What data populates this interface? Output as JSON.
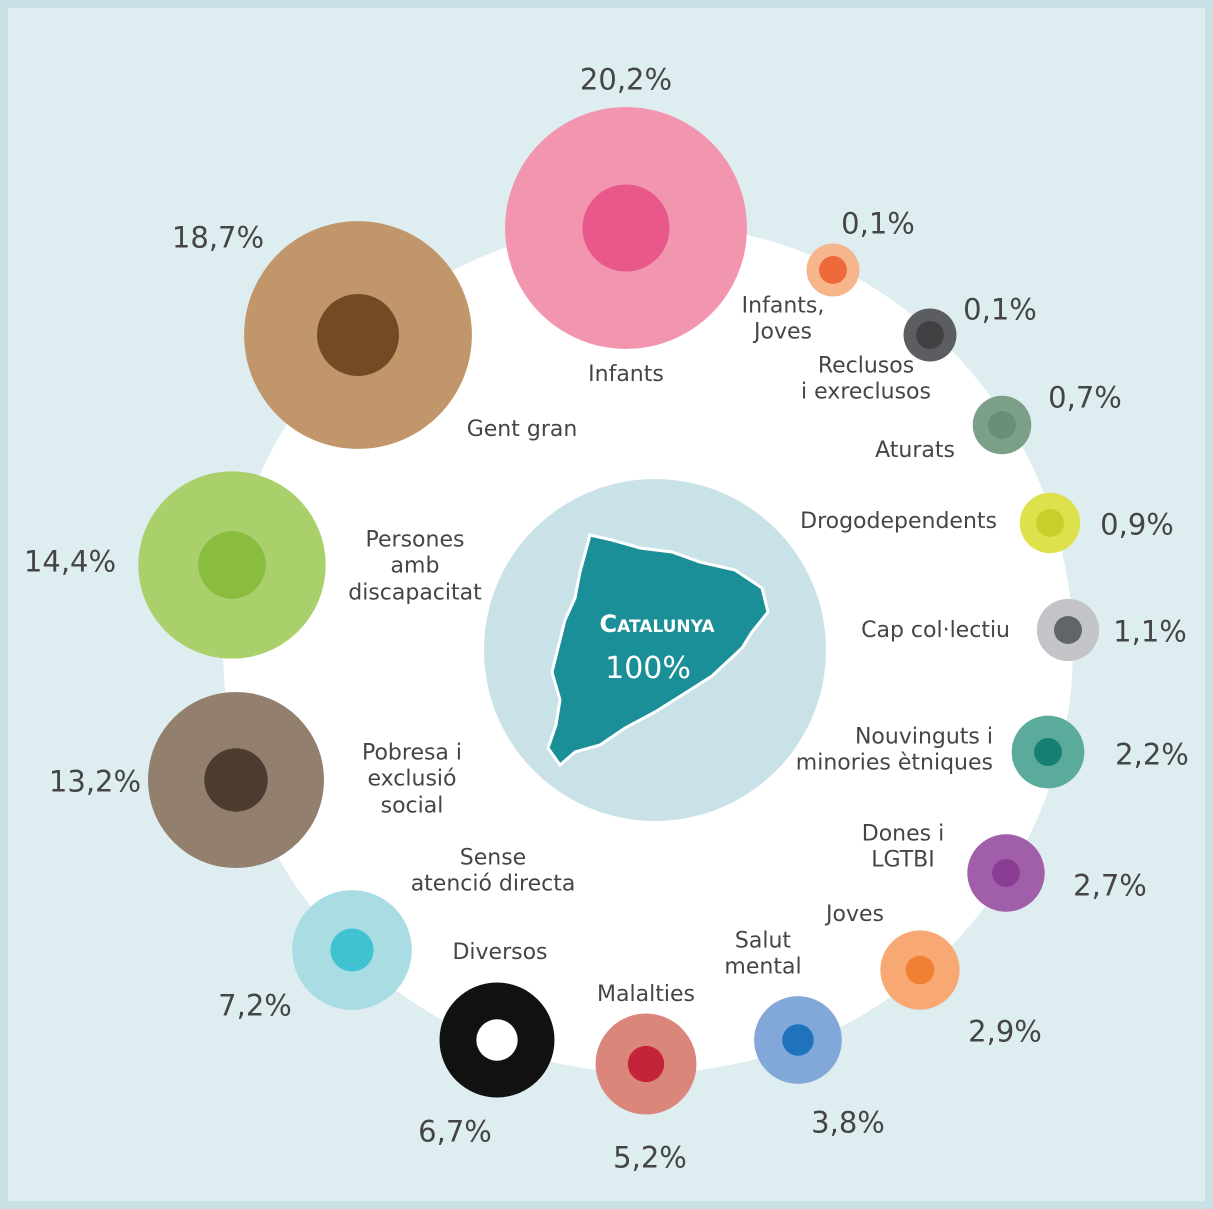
{
  "chart_data": {
    "type": "bubble",
    "center": {
      "label": "Catalunya",
      "value": 100,
      "value_label": "100%"
    },
    "categories": [
      "Infants",
      "Infants,\nJoves",
      "Reclusos\ni exreclusos",
      "Aturats",
      "Drogodependents",
      "Cap col·lectiu",
      "Nouvinguts i\nminories ètniques",
      "Dones i\nLGTBI",
      "Joves",
      "Salut\nmental",
      "Malalties",
      "Diversos",
      "Sense\natenció directa",
      "Pobresa i\nexclusió\nsocial",
      "Persones\namb\ndiscapacitat",
      "Gent gran"
    ],
    "values": [
      20.2,
      0.1,
      0.1,
      0.7,
      0.9,
      1.1,
      2.2,
      2.7,
      2.9,
      3.8,
      5.2,
      6.7,
      7.2,
      13.2,
      14.4,
      18.7
    ],
    "value_labels": [
      "20,2%",
      "0,1%",
      "0,1%",
      "0,7%",
      "0,9%",
      "1,1%",
      "2,2%",
      "2,7%",
      "2,9%",
      "3,8%",
      "5,2%",
      "6,7%",
      "7,2%",
      "13,2%",
      "14,4%",
      "18,7%"
    ],
    "colors": [
      "#f296b0",
      "#f7b58c",
      "#5b5d60",
      "#7b9f88",
      "#dde24c",
      "#c2c4c7",
      "#5aab9c",
      "#a25fa9",
      "#f8a872",
      "#82a8da",
      "#da867b",
      "#111111",
      "#a9dce3",
      "#937f6d",
      "#aad06c",
      "#c0966a"
    ],
    "icon_colors": [
      "#e9588b",
      "#ef6a3a",
      "#3f4143",
      "#6a8f78",
      "#c9cf2a",
      "#616468",
      "#187f73",
      "#8a3e93",
      "#f08033",
      "#1f73bb",
      "#c4243a",
      "#ffffff",
      "#3fc3d1",
      "#4c3b2f",
      "#8abd3f",
      "#744a24"
    ]
  }
}
